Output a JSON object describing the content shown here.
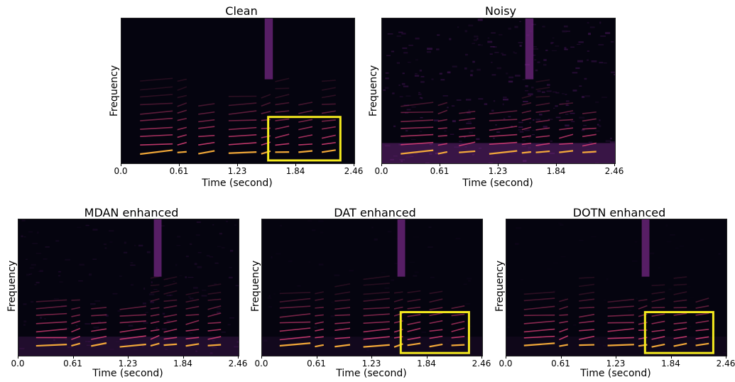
{
  "panels": [
    {
      "key": "clean",
      "title": "Clean",
      "ylabel": "Frequency",
      "xlabel": "Time (second)",
      "ticks": [
        "0.0",
        "0.61",
        "1.23",
        "1.84",
        "2.46"
      ],
      "noise": 0.0,
      "highlight": true
    },
    {
      "key": "noisy",
      "title": "Noisy",
      "ylabel": "Frequency",
      "xlabel": "Time (second)",
      "ticks": [
        "0.0",
        "0.61",
        "1.23",
        "1.84",
        "2.46"
      ],
      "noise": 1.0,
      "highlight": false
    },
    {
      "key": "mdan",
      "title": "MDAN enhanced",
      "ylabel": "Frequency",
      "xlabel": "Time (second)",
      "ticks": [
        "0.0",
        "0.61",
        "1.23",
        "1.84",
        "2.46"
      ],
      "noise": 0.55,
      "highlight": false
    },
    {
      "key": "dat",
      "title": "DAT enhanced",
      "ylabel": "Frequency",
      "xlabel": "Time (second)",
      "ticks": [
        "0.0",
        "0.61",
        "1.23",
        "1.84",
        "2.46"
      ],
      "noise": 0.25,
      "highlight": true
    },
    {
      "key": "dotn",
      "title": "DOTN enhanced",
      "ylabel": "Frequency",
      "xlabel": "Time (second)",
      "ticks": [
        "0.0",
        "0.61",
        "1.23",
        "1.84",
        "2.46"
      ],
      "noise": 0.2,
      "highlight": true
    }
  ],
  "colors": {
    "background": "#05040f",
    "highlight": "#f5ea1e",
    "harmonic": "#e0407a",
    "low": "#ffb13b"
  }
}
